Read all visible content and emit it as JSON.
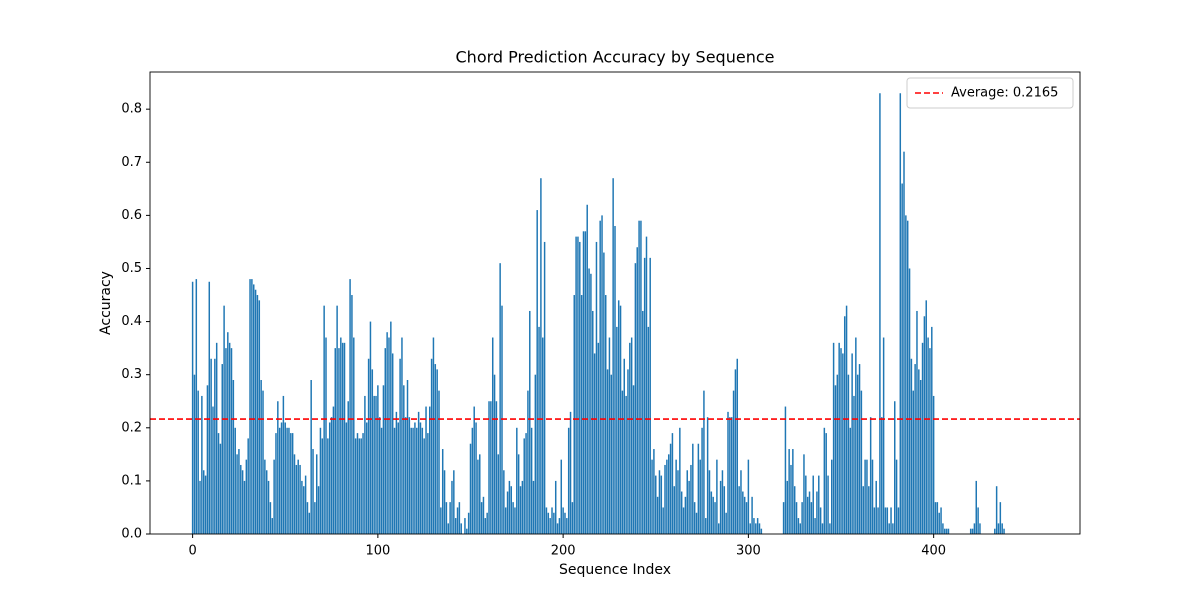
{
  "chart_data": {
    "type": "bar",
    "title": "Chord Prediction Accuracy by Sequence",
    "x_label": "Sequence Index",
    "y_label": "Accuracy",
    "color": "#1f77b4",
    "bar_width": 0.8,
    "xlim": [
      -23,
      479
    ],
    "ylim": [
      0,
      0.87
    ],
    "xticks": [
      0,
      100,
      200,
      300,
      400
    ],
    "yticks": [
      {
        "value": 0,
        "label": "0.0"
      },
      0.1,
      0.2,
      0.3,
      0.4,
      0.5,
      0.6,
      0.7,
      0.8
    ],
    "legend_position": "upper right",
    "reference_line": {
      "value": 0.2165,
      "label": "Average: 0.2165",
      "color": "#ff0000",
      "style": "dashed"
    },
    "x": [
      0,
      1,
      2,
      3,
      4,
      5,
      6,
      7,
      8,
      9,
      10,
      11,
      12,
      13,
      14,
      15,
      16,
      17,
      18,
      19,
      20,
      21,
      22,
      23,
      24,
      25,
      26,
      27,
      28,
      29,
      30,
      31,
      32,
      33,
      34,
      35,
      36,
      37,
      38,
      39,
      40,
      41,
      42,
      43,
      44,
      45,
      46,
      47,
      48,
      49,
      50,
      51,
      52,
      53,
      54,
      55,
      56,
      57,
      58,
      59,
      60,
      61,
      62,
      63,
      64,
      65,
      66,
      67,
      68,
      69,
      70,
      71,
      72,
      73,
      74,
      75,
      76,
      77,
      78,
      79,
      80,
      81,
      82,
      83,
      84,
      85,
      86,
      87,
      88,
      89,
      90,
      91,
      92,
      93,
      94,
      95,
      96,
      97,
      98,
      99,
      100,
      101,
      102,
      103,
      104,
      105,
      106,
      107,
      108,
      109,
      110,
      111,
      112,
      113,
      114,
      115,
      116,
      117,
      118,
      119,
      120,
      121,
      122,
      123,
      124,
      125,
      126,
      127,
      128,
      129,
      130,
      131,
      132,
      133,
      134,
      135,
      136,
      137,
      138,
      139,
      140,
      141,
      142,
      143,
      144,
      145,
      146,
      147,
      148,
      149,
      150,
      151,
      152,
      153,
      154,
      155,
      156,
      157,
      158,
      159,
      160,
      161,
      162,
      163,
      164,
      165,
      166,
      167,
      168,
      169,
      170,
      171,
      172,
      173,
      174,
      175,
      176,
      177,
      178,
      179,
      180,
      181,
      182,
      183,
      184,
      185,
      186,
      187,
      188,
      189,
      190,
      191,
      192,
      193,
      194,
      195,
      196,
      197,
      198,
      199,
      200,
      201,
      202,
      203,
      204,
      205,
      206,
      207,
      208,
      209,
      210,
      211,
      212,
      213,
      214,
      215,
      216,
      217,
      218,
      219,
      220,
      221,
      222,
      223,
      224,
      225,
      226,
      227,
      228,
      229,
      230,
      231,
      232,
      233,
      234,
      235,
      236,
      237,
      238,
      239,
      240,
      241,
      242,
      243,
      244,
      245,
      246,
      247,
      248,
      249,
      250,
      251,
      252,
      253,
      254,
      255,
      256,
      257,
      258,
      259,
      260,
      261,
      262,
      263,
      264,
      265,
      266,
      267,
      268,
      269,
      270,
      271,
      272,
      273,
      274,
      275,
      276,
      277,
      278,
      279,
      280,
      281,
      282,
      283,
      284,
      285,
      286,
      287,
      288,
      289,
      290,
      291,
      292,
      293,
      294,
      295,
      296,
      297,
      298,
      299,
      300,
      301,
      302,
      303,
      304,
      305,
      306,
      307,
      308,
      309,
      310,
      311,
      312,
      313,
      314,
      315,
      316,
      317,
      318,
      319,
      320,
      321,
      322,
      323,
      324,
      325,
      326,
      327,
      328,
      329,
      330,
      331,
      332,
      333,
      334,
      335,
      336,
      337,
      338,
      339,
      340,
      341,
      342,
      343,
      344,
      345,
      346,
      347,
      348,
      349,
      350,
      351,
      352,
      353,
      354,
      355,
      356,
      357,
      358,
      359,
      360,
      361,
      362,
      363,
      364,
      365,
      366,
      367,
      368,
      369,
      370,
      371,
      372,
      373,
      374,
      375,
      376,
      377,
      378,
      379,
      380,
      381,
      382,
      383,
      384,
      385,
      386,
      387,
      388,
      389,
      390,
      391,
      392,
      393,
      394,
      395,
      396,
      397,
      398,
      399,
      400,
      401,
      402,
      403,
      404,
      405,
      406,
      407,
      408,
      409,
      410,
      411,
      412,
      413,
      414,
      415,
      416,
      417,
      418,
      419,
      420,
      421,
      422,
      423,
      424,
      425,
      426,
      427,
      428,
      429,
      430,
      431,
      432,
      433,
      434,
      435,
      436,
      437,
      438
    ],
    "values": [
      0.475,
      0.3,
      0.48,
      0.27,
      0.1,
      0.26,
      0.12,
      0.11,
      0.28,
      0.475,
      0.33,
      0.24,
      0.33,
      0.36,
      0.19,
      0.17,
      0.32,
      0.43,
      0.35,
      0.38,
      0.36,
      0.35,
      0.29,
      0.2,
      0.15,
      0.16,
      0.13,
      0.12,
      0.1,
      0.14,
      0.18,
      0.48,
      0.48,
      0.47,
      0.46,
      0.45,
      0.44,
      0.29,
      0.27,
      0.14,
      0.12,
      0.1,
      0.06,
      0.03,
      0.14,
      0.19,
      0.25,
      0.2,
      0.21,
      0.26,
      0.21,
      0.2,
      0.2,
      0.19,
      0.19,
      0.15,
      0.13,
      0.14,
      0.13,
      0.1,
      0.09,
      0.11,
      0.06,
      0.04,
      0.29,
      0.16,
      0.06,
      0.15,
      0.09,
      0.2,
      0.18,
      0.43,
      0.37,
      0.18,
      0.21,
      0.22,
      0.24,
      0.35,
      0.43,
      0.35,
      0.37,
      0.36,
      0.36,
      0.21,
      0.25,
      0.48,
      0.45,
      0.37,
      0.18,
      0.19,
      0.18,
      0.18,
      0.19,
      0.26,
      0.21,
      0.33,
      0.4,
      0.31,
      0.26,
      0.26,
      0.28,
      0.22,
      0.2,
      0.28,
      0.35,
      0.38,
      0.37,
      0.4,
      0.34,
      0.2,
      0.23,
      0.21,
      0.33,
      0.37,
      0.28,
      0.22,
      0.29,
      0.22,
      0.2,
      0.2,
      0.21,
      0.2,
      0.23,
      0.21,
      0.2,
      0.18,
      0.24,
      0.19,
      0.24,
      0.33,
      0.37,
      0.32,
      0.31,
      0.27,
      0.05,
      0.16,
      0.12,
      0.06,
      0.02,
      0.06,
      0.1,
      0.12,
      0.03,
      0.05,
      0.06,
      0.02,
      0,
      0.03,
      0.01,
      0.04,
      0.17,
      0.2,
      0.24,
      0.21,
      0.14,
      0.15,
      0.06,
      0.07,
      0.03,
      0.04,
      0.25,
      0.25,
      0.37,
      0.3,
      0.25,
      0.15,
      0.51,
      0.43,
      0.12,
      0.05,
      0.08,
      0.1,
      0.09,
      0.06,
      0.05,
      0.2,
      0.15,
      0.09,
      0.1,
      0.18,
      0.19,
      0.27,
      0.42,
      0.2,
      0.1,
      0.3,
      0.61,
      0.39,
      0.67,
      0.37,
      0.55,
      0.05,
      0.04,
      0.03,
      0.05,
      0.04,
      0.1,
      0.02,
      0.03,
      0.14,
      0.05,
      0.04,
      0.03,
      0.2,
      0.23,
      0.06,
      0.45,
      0.56,
      0.56,
      0.55,
      0.45,
      0.57,
      0.57,
      0.62,
      0.5,
      0.49,
      0.42,
      0.34,
      0.55,
      0.36,
      0.59,
      0.6,
      0.53,
      0.45,
      0.31,
      0.37,
      0.3,
      0.67,
      0.58,
      0.39,
      0.44,
      0.43,
      0.27,
      0.33,
      0.26,
      0.31,
      0.36,
      0.37,
      0.28,
      0.51,
      0.54,
      0.59,
      0.59,
      0.42,
      0.52,
      0.56,
      0.39,
      0.52,
      0.14,
      0.16,
      0.11,
      0.07,
      0.12,
      0.11,
      0.05,
      0.13,
      0.14,
      0.15,
      0.17,
      0.19,
      0.09,
      0.14,
      0.12,
      0.2,
      0.08,
      0.05,
      0.07,
      0.12,
      0.1,
      0.13,
      0.17,
      0.06,
      0.04,
      0.17,
      0.14,
      0.2,
      0.27,
      0.03,
      0.22,
      0.12,
      0.08,
      0.07,
      0.06,
      0.14,
      0.02,
      0.1,
      0.12,
      0.09,
      0.04,
      0.23,
      0.22,
      0.22,
      0.27,
      0.31,
      0.33,
      0.09,
      0.12,
      0.08,
      0.07,
      0.06,
      0.14,
      0.02,
      0.07,
      0.03,
      0.02,
      0.03,
      0.02,
      0.01,
      0,
      0,
      0,
      0,
      0,
      0,
      0,
      0,
      0,
      0,
      0,
      0.06,
      0.24,
      0.1,
      0.16,
      0.13,
      0.16,
      0.09,
      0.06,
      0.03,
      0.02,
      0.06,
      0.15,
      0.11,
      0.07,
      0.08,
      0.06,
      0.11,
      0.03,
      0.08,
      0.11,
      0.05,
      0.02,
      0.2,
      0.19,
      0.11,
      0.02,
      0.14,
      0.36,
      0.28,
      0.3,
      0.36,
      0.35,
      0.34,
      0.41,
      0.43,
      0.3,
      0.2,
      0.34,
      0.26,
      0.37,
      0.3,
      0.32,
      0.27,
      0.09,
      0.14,
      0.14,
      0.09,
      0.22,
      0.14,
      0.05,
      0.1,
      0.05,
      0.83,
      0.22,
      0.37,
      0.05,
      0.05,
      0.02,
      0.05,
      0.02,
      0.25,
      0.14,
      0.05,
      0.83,
      0.66,
      0.72,
      0.6,
      0.59,
      0.5,
      0.33,
      0.27,
      0.32,
      0.42,
      0.31,
      0.29,
      0.36,
      0.41,
      0.44,
      0.37,
      0.35,
      0.39,
      0.26,
      0.06,
      0.06,
      0.04,
      0.05,
      0.02,
      0.01,
      0.01,
      0.01,
      0,
      0,
      0,
      0,
      0,
      0,
      0,
      0,
      0,
      0,
      0,
      0.01,
      0.01,
      0.02,
      0.1,
      0.05,
      0.02,
      0,
      0,
      0,
      0,
      0,
      0,
      0,
      0.01,
      0.09,
      0.02,
      0.06,
      0.02,
      0.01
    ]
  }
}
